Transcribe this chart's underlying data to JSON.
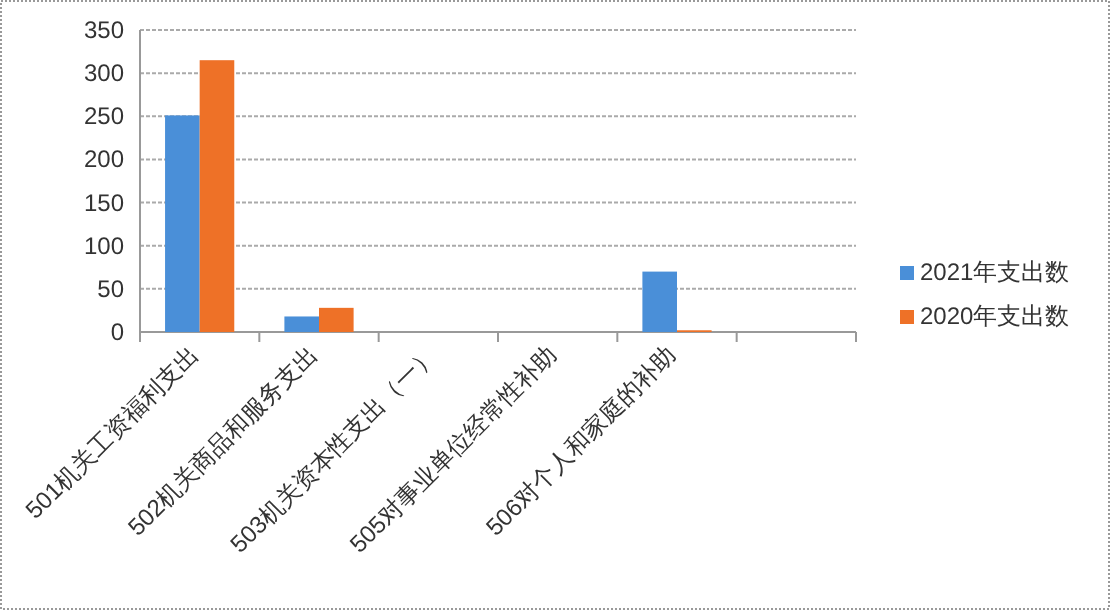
{
  "chart_data": {
    "type": "bar",
    "categories": [
      "501机关工资福利支出",
      "502机关商品和服务支出",
      "503机关资本性支出（一）",
      "505对事业单位经常性补助",
      "506对个人和家庭的补助",
      null
    ],
    "series": [
      {
        "name": "2021年支出数",
        "color": "#4a8fd8",
        "values": [
          251,
          18,
          0,
          0,
          70,
          null
        ]
      },
      {
        "name": "2020年支出数",
        "color": "#ee7127",
        "values": [
          315,
          28,
          0,
          0,
          2,
          null
        ]
      }
    ],
    "ylim": [
      0,
      350
    ],
    "yticks": [
      0,
      50,
      100,
      150,
      200,
      250,
      300,
      350
    ],
    "grid": "y",
    "legend": "right"
  }
}
